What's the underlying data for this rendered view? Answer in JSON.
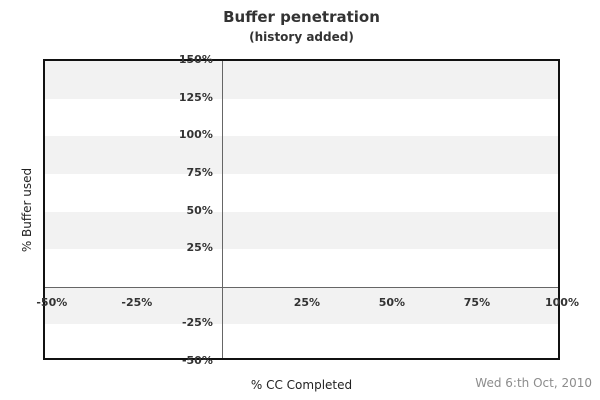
{
  "header": {
    "title": "Buffer penetration",
    "subtitle": "(history added)"
  },
  "footer": {
    "date": "Wed 6:th Oct, 2010"
  },
  "chart_data": {
    "type": "scatter",
    "title": "Buffer penetration",
    "subtitle": "(history added)",
    "xlabel": "% CC Completed",
    "ylabel": "% Buffer used",
    "xlim": [
      -52,
      100
    ],
    "ylim": [
      -50,
      150
    ],
    "x_ticks": [
      {
        "value": -50,
        "label": "-50%"
      },
      {
        "value": -25,
        "label": "-25%"
      },
      {
        "value": 25,
        "label": "25%"
      },
      {
        "value": 50,
        "label": "50%"
      },
      {
        "value": 75,
        "label": "75%"
      },
      {
        "value": 100,
        "label": "100%"
      }
    ],
    "y_ticks": [
      {
        "value": 150,
        "label": "150%"
      },
      {
        "value": 125,
        "label": "125%"
      },
      {
        "value": 100,
        "label": "100%"
      },
      {
        "value": 75,
        "label": "75%"
      },
      {
        "value": 50,
        "label": "50%"
      },
      {
        "value": 25,
        "label": "25%"
      },
      {
        "value": -25,
        "label": "-25%"
      },
      {
        "value": -50,
        "label": "-50%"
      }
    ],
    "grid": "horizontal-bands",
    "band_step": 25,
    "band_top_value": 150,
    "series": [],
    "legend_position": "none",
    "colors": {
      "band": "#f2f2f2",
      "plot_border": "#111111",
      "zero_line": "#666666",
      "tick_text": "#333333",
      "title_text": "#333333",
      "axis_title_text": "#222222",
      "date_text": "#8c8c8c",
      "background": "#ffffff"
    }
  }
}
